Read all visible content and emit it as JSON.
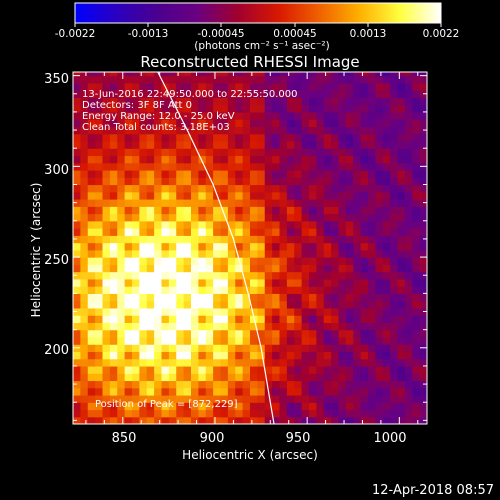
{
  "colorbar": {
    "ticks": [
      "-0.0022",
      "-0.0013",
      "-0.00045",
      "0.00045",
      "0.0013",
      "0.0022"
    ],
    "units_label": "(photons cm⁻² s⁻¹ asec⁻²)",
    "colors": [
      "#0000ff",
      "#2a00c0",
      "#4a0090",
      "#6a0080",
      "#a00030",
      "#d81800",
      "#f06000",
      "#ffb000",
      "#ffff40",
      "#ffffff"
    ]
  },
  "chart_data": {
    "type": "heatmap",
    "title": "Reconstructed RHESSI Image",
    "xlabel": "Heliocentric X (arcsec)",
    "ylabel": "Heliocentric Y (arcsec)",
    "xlim": [
      823,
      1015
    ],
    "ylim": [
      158,
      352
    ],
    "xticks": [
      850,
      900,
      950,
      1000
    ],
    "yticks": [
      200,
      250,
      300,
      350
    ],
    "xtick_labels": [
      "850",
      "900",
      "950",
      "1000"
    ],
    "ytick_labels": [
      "200",
      "250",
      "300",
      "350"
    ],
    "peak": [
      872,
      229
    ],
    "limb_curve": [
      [
        869,
        352
      ],
      [
        885,
        320
      ],
      [
        899,
        290
      ],
      [
        910,
        260
      ],
      [
        918,
        230
      ],
      [
        925,
        200
      ],
      [
        930,
        170
      ],
      [
        932,
        158
      ]
    ],
    "annotations": {
      "time": "13-Jun-2016 22:49:50.000 to 22:55:50.000",
      "detectors": "Detectors: 3F 8F  Att 0",
      "energy": "Energy Range: 12.0 - 25.0 keV",
      "clean": "Clean     Total counts: 3.18E+03",
      "peak": "Position of Peak = [872,229]"
    }
  },
  "footer": {
    "timestamp": "12-Apr-2018 08:57"
  }
}
